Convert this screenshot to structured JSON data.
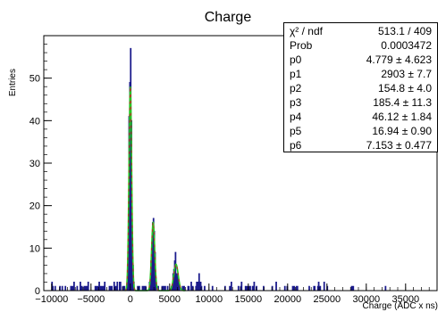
{
  "chart_data": {
    "type": "histogram",
    "title": "Charge",
    "xlabel": "Charge (ADC x ns)",
    "ylabel": "Entries",
    "xlim": [
      -11000,
      39000
    ],
    "ylim": [
      0,
      60
    ],
    "x_ticks": [
      -10000,
      -5000,
      0,
      5000,
      10000,
      15000,
      20000,
      25000,
      30000,
      35000
    ],
    "x_tick_labels": [
      "−10000",
      "−5000",
      "0",
      "5000",
      "10000",
      "15000",
      "20000",
      "25000",
      "30000",
      "35000"
    ],
    "y_ticks": [
      0,
      10,
      20,
      30,
      40,
      50
    ],
    "y_tick_labels": [
      "0",
      "10",
      "20",
      "30",
      "40",
      "50"
    ],
    "histogram_color": "#1b1b8c",
    "fit_color": "#22cc22",
    "fit_dash_color": "#cc2222",
    "peaks": [
      {
        "center": 0,
        "height": 57,
        "sigma": 155
      },
      {
        "center": 2903,
        "height": 17,
        "sigma": 185
      },
      {
        "center": 5806,
        "height": 7,
        "sigma": 260
      },
      {
        "center": 8709,
        "height": 2.5,
        "sigma": 330
      }
    ],
    "fit_peaks": [
      {
        "center": 0,
        "height": 48,
        "sigma": 170
      },
      {
        "center": 2903,
        "height": 16,
        "sigma": 200
      },
      {
        "center": 5806,
        "height": 6.2,
        "sigma": 280
      }
    ],
    "fit_range": [
      -700,
      7000
    ],
    "background_level": 0.4,
    "background_range": [
      -10000,
      35000
    ]
  },
  "stats": [
    {
      "label": "χ² / ndf",
      "value": "513.1 / 409"
    },
    {
      "label": "Prob",
      "value": "0.0003472"
    },
    {
      "label": "p0",
      "value": "4.779 ± 4.623"
    },
    {
      "label": "p1",
      "value": "2903 ± 7.7"
    },
    {
      "label": "p2",
      "value": "154.8 ± 4.0"
    },
    {
      "label": "p3",
      "value": "185.4 ± 11.3"
    },
    {
      "label": "p4",
      "value": "46.12 ± 1.84"
    },
    {
      "label": "p5",
      "value": "16.94 ± 0.90"
    },
    {
      "label": "p6",
      "value": "7.153 ± 0.477"
    }
  ]
}
